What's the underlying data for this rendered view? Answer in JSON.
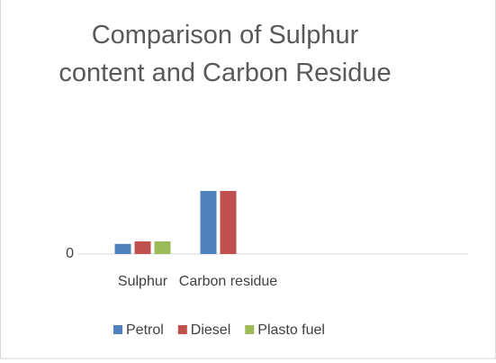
{
  "chart_data": {
    "type": "bar",
    "title": "Comparison of Sulphur content and Carbon Residue",
    "categories": [
      "Sulphur",
      "Carbon residue"
    ],
    "series": [
      {
        "name": "Petrol",
        "color": "#4f81bd",
        "values": [
          0.08,
          0.5
        ]
      },
      {
        "name": "Diesel",
        "color": "#c0504d",
        "values": [
          0.1,
          0.5
        ]
      },
      {
        "name": "Plasto fuel",
        "color": "#9bbb59",
        "values": [
          0.1,
          0
        ]
      }
    ],
    "ylim": [
      0,
      1
    ],
    "yticks": [
      0
    ],
    "legend": "bottom"
  }
}
